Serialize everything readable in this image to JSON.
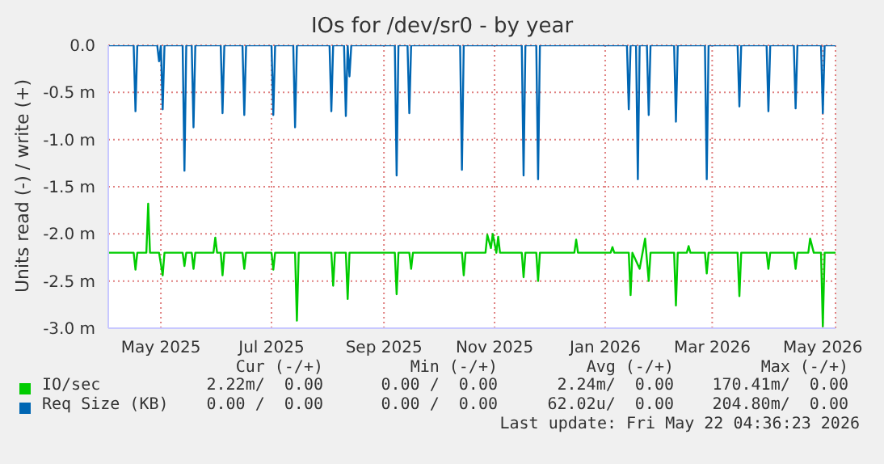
{
  "chart_data": {
    "type": "line",
    "title": "IOs for /dev/sr0 - by year",
    "ylabel": "Units read (-) / write (+)",
    "xlim": [
      "2025-04-02",
      "2026-05-08"
    ],
    "xticks": [
      {
        "value": "2025-05-01",
        "label": "May 2025"
      },
      {
        "value": "2025-07-01",
        "label": "Jul 2025"
      },
      {
        "value": "2025-09-01",
        "label": "Sep 2025"
      },
      {
        "value": "2025-11-01",
        "label": "Nov 2025"
      },
      {
        "value": "2026-01-01",
        "label": "Jan 2026"
      },
      {
        "value": "2026-03-01",
        "label": "Mar 2026"
      },
      {
        "value": "2026-05-01",
        "label": "May 2026"
      }
    ],
    "ylim": [
      -3.0,
      0.0
    ],
    "yticks": [
      {
        "value": 0,
        "label": "0.0"
      },
      {
        "value": -0.5,
        "label": "-0.5 m"
      },
      {
        "value": -1.0,
        "label": "-1.0 m"
      },
      {
        "value": -1.5,
        "label": "-1.5 m"
      },
      {
        "value": -2.0,
        "label": "-2.0 m"
      },
      {
        "value": -2.5,
        "label": "-2.5 m"
      },
      {
        "value": -3.0,
        "label": "-3.0 m"
      }
    ],
    "grid": true,
    "legend": "bottom",
    "marker": "none",
    "line_style": "solid",
    "series": [
      {
        "name": "IO/sec",
        "color": "#00cc00",
        "x": [
          "2025-04-02",
          "2025-04-16",
          "2025-04-17",
          "2025-04-18",
          "2025-04-23",
          "2025-04-24",
          "2025-04-25",
          "2025-04-30",
          "2025-05-02",
          "2025-05-03",
          "2025-05-13",
          "2025-05-14",
          "2025-05-15",
          "2025-05-18",
          "2025-05-19",
          "2025-05-20",
          "2025-05-30",
          "2025-05-31",
          "2025-06-01",
          "2025-06-03",
          "2025-06-04",
          "2025-06-05",
          "2025-06-15",
          "2025-06-16",
          "2025-06-17",
          "2025-07-01",
          "2025-07-02",
          "2025-07-03",
          "2025-07-14",
          "2025-07-15",
          "2025-07-16",
          "2025-08-03",
          "2025-08-04",
          "2025-08-05",
          "2025-08-11",
          "2025-08-12",
          "2025-08-13",
          "2025-09-07",
          "2025-09-08",
          "2025-09-09",
          "2025-09-15",
          "2025-09-16",
          "2025-09-17",
          "2025-10-14",
          "2025-10-15",
          "2025-10-16",
          "2025-10-27",
          "2025-10-28",
          "2025-10-30",
          "2025-10-31",
          "2025-11-02",
          "2025-11-03",
          "2025-11-04",
          "2025-11-16",
          "2025-11-17",
          "2025-11-18",
          "2025-11-24",
          "2025-11-25",
          "2025-11-26",
          "2025-12-15",
          "2025-12-16",
          "2025-12-17",
          "2026-01-04",
          "2026-01-05",
          "2026-01-06",
          "2026-01-14",
          "2026-01-15",
          "2026-01-16",
          "2026-01-20",
          "2026-01-23",
          "2026-01-25",
          "2026-01-26",
          "2026-02-08",
          "2026-02-09",
          "2026-02-10",
          "2026-02-15",
          "2026-02-16",
          "2026-02-17",
          "2026-02-25",
          "2026-02-26",
          "2026-02-27",
          "2026-03-15",
          "2026-03-16",
          "2026-03-17",
          "2026-03-31",
          "2026-04-01",
          "2026-04-02",
          "2026-04-15",
          "2026-04-16",
          "2026-04-17",
          "2026-04-23",
          "2026-04-24",
          "2026-04-26",
          "2026-04-30",
          "2026-05-01",
          "2026-05-02",
          "2026-05-08"
        ],
        "values": [
          -2.2,
          -2.2,
          -2.38,
          -2.2,
          -2.2,
          -1.68,
          -2.2,
          -2.2,
          -2.44,
          -2.2,
          -2.2,
          -2.34,
          -2.2,
          -2.2,
          -2.37,
          -2.2,
          -2.2,
          -2.04,
          -2.2,
          -2.2,
          -2.44,
          -2.2,
          -2.2,
          -2.37,
          -2.2,
          -2.2,
          -2.38,
          -2.2,
          -2.2,
          -2.92,
          -2.2,
          -2.2,
          -2.55,
          -2.2,
          -2.2,
          -2.69,
          -2.2,
          -2.2,
          -2.64,
          -2.2,
          -2.2,
          -2.37,
          -2.2,
          -2.2,
          -2.44,
          -2.2,
          -2.2,
          -2.01,
          -2.15,
          -2.0,
          -2.2,
          -2.03,
          -2.2,
          -2.2,
          -2.46,
          -2.2,
          -2.2,
          -2.5,
          -2.2,
          -2.2,
          -2.06,
          -2.2,
          -2.2,
          -2.14,
          -2.2,
          -2.2,
          -2.65,
          -2.2,
          -2.37,
          -2.05,
          -2.5,
          -2.2,
          -2.2,
          -2.76,
          -2.2,
          -2.2,
          -2.13,
          -2.2,
          -2.2,
          -2.42,
          -2.2,
          -2.2,
          -2.66,
          -2.2,
          -2.2,
          -2.37,
          -2.2,
          -2.2,
          -2.37,
          -2.2,
          -2.2,
          -2.05,
          -2.2,
          -2.2,
          -2.98,
          -2.2,
          -2.2
        ]
      },
      {
        "name": "Req Size (KB)",
        "color": "#0066b3",
        "x": [
          "2025-04-02",
          "2025-04-16",
          "2025-04-17",
          "2025-04-18",
          "2025-04-29",
          "2025-04-30",
          "2025-05-01",
          "2025-05-02",
          "2025-05-03",
          "2025-05-13",
          "2025-05-14",
          "2025-05-15",
          "2025-05-18",
          "2025-05-19",
          "2025-05-20",
          "2025-06-03",
          "2025-06-04",
          "2025-06-05",
          "2025-06-15",
          "2025-06-16",
          "2025-06-17",
          "2025-07-01",
          "2025-07-02",
          "2025-07-03",
          "2025-07-13",
          "2025-07-14",
          "2025-07-15",
          "2025-08-02",
          "2025-08-03",
          "2025-08-04",
          "2025-08-10",
          "2025-08-11",
          "2025-08-12",
          "2025-08-13",
          "2025-08-14",
          "2025-09-07",
          "2025-09-08",
          "2025-09-09",
          "2025-09-14",
          "2025-09-15",
          "2025-09-16",
          "2025-10-13",
          "2025-10-14",
          "2025-10-15",
          "2025-11-16",
          "2025-11-17",
          "2025-11-18",
          "2025-11-24",
          "2025-11-25",
          "2025-11-26",
          "2026-01-13",
          "2026-01-14",
          "2026-01-15",
          "2026-01-18",
          "2026-01-19",
          "2026-01-20",
          "2026-01-24",
          "2026-01-25",
          "2026-01-26",
          "2026-02-08",
          "2026-02-09",
          "2026-02-10",
          "2026-02-25",
          "2026-02-26",
          "2026-02-27",
          "2026-03-15",
          "2026-03-16",
          "2026-03-17",
          "2026-03-31",
          "2026-04-01",
          "2026-04-02",
          "2026-04-15",
          "2026-04-16",
          "2026-04-17",
          "2026-04-30",
          "2026-05-01",
          "2026-05-02",
          "2026-05-08"
        ],
        "values": [
          0,
          0,
          -0.7,
          0,
          0,
          -0.17,
          0,
          -0.68,
          0,
          0,
          -1.33,
          0,
          0,
          -0.87,
          0,
          0,
          -0.72,
          0,
          0,
          -0.74,
          0,
          0,
          -0.74,
          0,
          0,
          -0.87,
          0,
          0,
          -0.7,
          0,
          0,
          -0.75,
          0,
          -0.33,
          0,
          0,
          -1.38,
          0,
          0,
          -0.72,
          0,
          0,
          -1.32,
          0,
          0,
          -1.38,
          0,
          0,
          -1.42,
          0,
          0,
          -0.68,
          0,
          0,
          -1.42,
          0,
          0,
          -0.74,
          0,
          0,
          -0.81,
          0,
          0,
          -1.42,
          0,
          0,
          -0.65,
          0,
          0,
          -0.7,
          0,
          0,
          -0.67,
          0,
          0,
          -0.72,
          0,
          0
        ]
      }
    ],
    "annotations": [
      "Cur (-/+)",
      "Min (-/+)",
      "Avg (-/+)",
      "Max (-/+)",
      "2.22m/  0.00",
      "0.00 /  0.00",
      "2.24m/  0.00",
      "170.41m/  0.00",
      "0.00 /  0.00",
      "0.00 /  0.00",
      "62.02u/  0.00",
      "204.80m/  0.00",
      "Last update: Fri May 22 04:36:23 2026"
    ]
  }
}
